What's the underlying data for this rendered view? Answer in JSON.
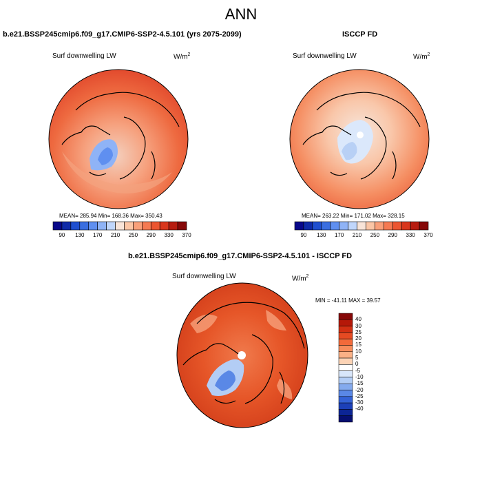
{
  "title": "ANN",
  "panels": [
    {
      "id": "model",
      "title": "b.e21.BSSP245cmip6.f09_g17.CMIP6-SSP2-4.5.101 (yrs 2075-2099)",
      "variable": "Surf downwelling LW",
      "units_base": "W/m",
      "units_exp": "2",
      "stats": "MEAN= 285.94  Min= 168.36  Max= 350.43",
      "mean": 285.94,
      "min": 168.36,
      "max": 350.43
    },
    {
      "id": "obs",
      "title": "ISCCP FD",
      "variable": "Surf downwelling LW",
      "units_base": "W/m",
      "units_exp": "2",
      "stats": "MEAN= 263.22  Min= 171.02  Max= 328.15",
      "mean": 263.22,
      "min": 171.02,
      "max": 328.15
    },
    {
      "id": "diff",
      "title": "b.e21.BSSP245cmip6.f09_g17.CMIP6-SSP2-4.5.101 - ISCCP FD",
      "variable": "Surf downwelling LW",
      "units_base": "W/m",
      "units_exp": "2",
      "stats": "MIN = -41.11 MAX =  39.57",
      "min": -41.11,
      "max": 39.57
    }
  ],
  "colorbar_abs": {
    "colors": [
      "#08088a",
      "#0f2aa8",
      "#1f4fd0",
      "#3a6ee0",
      "#5f8ff0",
      "#8fb3f6",
      "#c0d6fb",
      "#f8e4d8",
      "#fbc6a6",
      "#f9a07a",
      "#f57a52",
      "#ec5530",
      "#d9361c",
      "#b71c10",
      "#860808"
    ],
    "ticks": [
      "90",
      "130",
      "170",
      "210",
      "250",
      "290",
      "330",
      "370"
    ]
  },
  "colorbar_diff": {
    "colors": [
      "#860808",
      "#b51808",
      "#d22f12",
      "#e64a22",
      "#f26a3a",
      "#f78d5c",
      "#fab186",
      "#fcd3b5",
      "#ffffff",
      "#d8e6fa",
      "#b3cdf5",
      "#84aaee",
      "#5a88e6",
      "#3462d6",
      "#1c40b8",
      "#0c2595",
      "#060f70"
    ],
    "ticks": [
      "40",
      "30",
      "25",
      "20",
      "15",
      "10",
      "5",
      "0",
      "-5",
      "-10",
      "-15",
      "-20",
      "-25",
      "-30",
      "-40"
    ]
  },
  "chart_data": [
    {
      "type": "heatmap",
      "title": "b.e21.BSSP245cmip6.f09_g17.CMIP6-SSP2-4.5.101 (yrs 2075-2099)",
      "variable": "Surf downwelling LW",
      "units": "W/m2",
      "projection": "polar stereographic (Arctic)",
      "mean": 285.94,
      "min": 168.36,
      "max": 350.43,
      "levels": [
        90,
        130,
        170,
        210,
        250,
        290,
        330,
        370
      ]
    },
    {
      "type": "heatmap",
      "title": "ISCCP FD",
      "variable": "Surf downwelling LW",
      "units": "W/m2",
      "projection": "polar stereographic (Arctic)",
      "mean": 263.22,
      "min": 171.02,
      "max": 328.15,
      "levels": [
        90,
        130,
        170,
        210,
        250,
        290,
        330,
        370
      ]
    },
    {
      "type": "heatmap",
      "title": "b.e21.BSSP245cmip6.f09_g17.CMIP6-SSP2-4.5.101 - ISCCP FD",
      "variable": "Surf downwelling LW",
      "units": "W/m2",
      "projection": "polar stereographic (Arctic)",
      "min": -41.11,
      "max": 39.57,
      "levels": [
        -40,
        -30,
        -25,
        -20,
        -15,
        -10,
        -5,
        0,
        5,
        10,
        15,
        20,
        25,
        30,
        40
      ]
    }
  ]
}
